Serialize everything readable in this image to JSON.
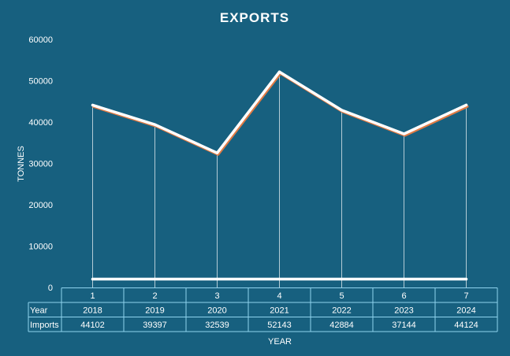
{
  "chart_data": {
    "type": "line",
    "title": "EXPORTS",
    "xlabel": "YEAR",
    "ylabel": "TONNES",
    "ylim": [
      0,
      60000
    ],
    "yticks": [
      0,
      10000,
      20000,
      30000,
      40000,
      50000,
      60000
    ],
    "categories": [
      "1",
      "2",
      "3",
      "4",
      "5",
      "6",
      "7"
    ],
    "series": [
      {
        "name": "Year",
        "values": [
          2018,
          2019,
          2020,
          2021,
          2022,
          2023,
          2024
        ]
      },
      {
        "name": "Imports",
        "values": [
          44102,
          39397,
          32539,
          52143,
          42884,
          37144,
          44124
        ]
      }
    ],
    "drop_lines": true,
    "grid": false,
    "legend": "data-table",
    "colors": {
      "background": "#17607f",
      "line": "#ffffff",
      "line_shadow": "#e07b45",
      "table_border": "#8fd3ee"
    }
  }
}
